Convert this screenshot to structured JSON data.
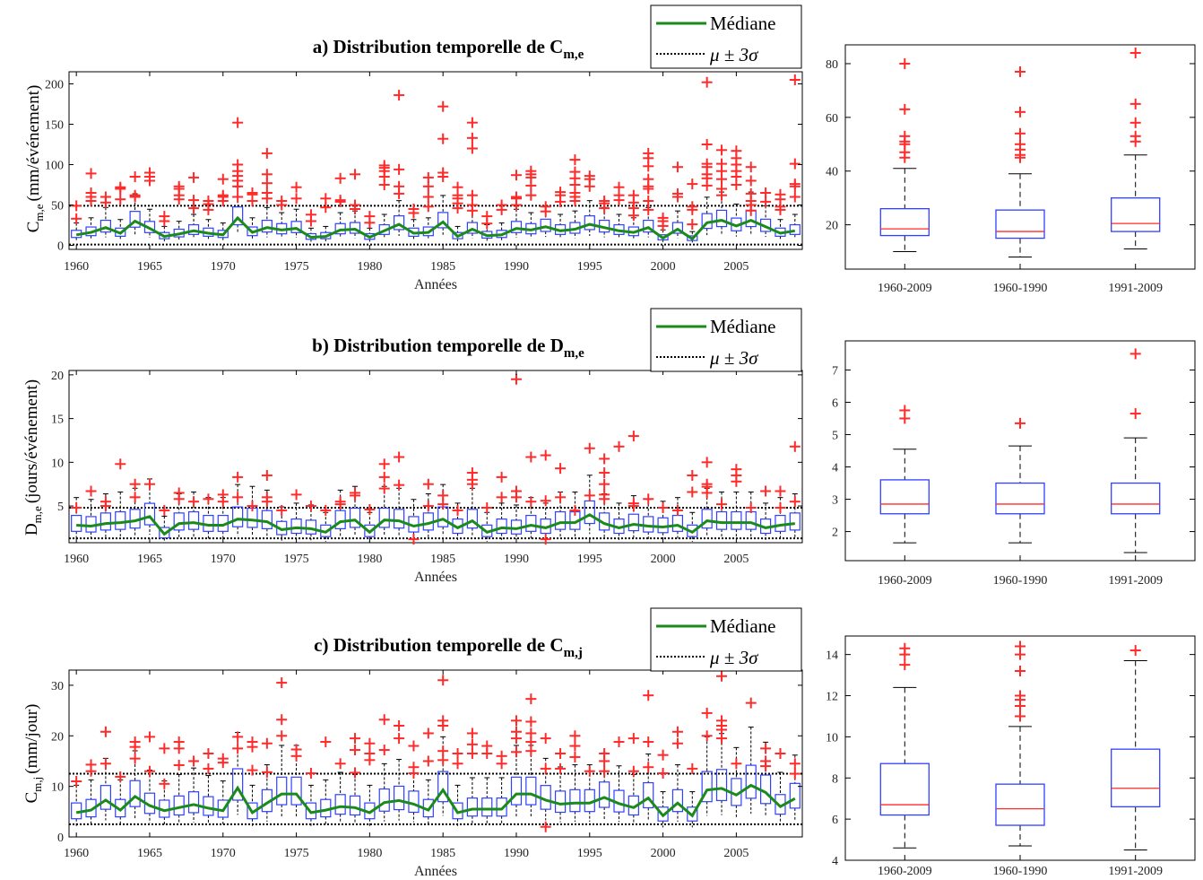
{
  "chart_data": [
    {
      "type": "boxplot",
      "title": "a) Distribution temporelle de C",
      "title_sub": "m,e",
      "ylabel": "C",
      "ylabel_sub": "m,e",
      "ylabel_unit": "(mm/événement)",
      "xlabel": "Années",
      "xlim": [
        1959.5,
        2009.5
      ],
      "ylim": [
        -5,
        215
      ],
      "x_ticks": [
        1960,
        1965,
        1970,
        1975,
        1980,
        1985,
        1990,
        1995,
        2000,
        2005
      ],
      "y_ticks": [
        0,
        50,
        100,
        150,
        200
      ],
      "mu_3sigma_band": [
        1,
        49
      ],
      "legend": {
        "median": "Médiane",
        "band": "μ ± 3σ"
      },
      "years": [
        1960,
        1961,
        1962,
        1963,
        1964,
        1965,
        1966,
        1967,
        1968,
        1969,
        1970,
        1971,
        1972,
        1973,
        1974,
        1975,
        1976,
        1977,
        1978,
        1979,
        1980,
        1981,
        1982,
        1983,
        1984,
        1985,
        1986,
        1987,
        1988,
        1989,
        1990,
        1991,
        1992,
        1993,
        1994,
        1995,
        1996,
        1997,
        1998,
        1999,
        2000,
        2001,
        2002,
        2003,
        2004,
        2005,
        2006,
        2007,
        2008,
        2009
      ],
      "medians": [
        13,
        16,
        22,
        15,
        30,
        21,
        11,
        14,
        18,
        15,
        13,
        34,
        16,
        22,
        19,
        21,
        10,
        11,
        19,
        20,
        10,
        18,
        26,
        15,
        16,
        29,
        11,
        20,
        12,
        13,
        21,
        19,
        23,
        18,
        20,
        26,
        22,
        18,
        16,
        22,
        9,
        20,
        8,
        28,
        31,
        24,
        31,
        23,
        15,
        18
      ],
      "outliers": {
        "1960": [
          33,
          49
        ],
        "1961": [
          55,
          60,
          65,
          89
        ],
        "1962": [
          53,
          60
        ],
        "1963": [
          57,
          70,
          72
        ],
        "1964": [
          60,
          62,
          85
        ],
        "1965": [
          80,
          85,
          90
        ],
        "1966": [
          30,
          36
        ],
        "1967": [
          57,
          62,
          70,
          73
        ],
        "1968": [
          46,
          56,
          84
        ],
        "1969": [
          44,
          51,
          55
        ],
        "1970": [
          55,
          60,
          62,
          82
        ],
        "1971": [
          60,
          73,
          80,
          86,
          92,
          100,
          152
        ],
        "1972": [
          55,
          63,
          65
        ],
        "1973": [
          58,
          65,
          77,
          88,
          114
        ],
        "1974": [
          50,
          55
        ],
        "1975": [
          58,
          72
        ],
        "1976": [
          30,
          38
        ],
        "1977": [
          47,
          58
        ],
        "1978": [
          54,
          56,
          83
        ],
        "1979": [
          45,
          50,
          88
        ],
        "1980": [
          28,
          36
        ],
        "1981": [
          75,
          85,
          92,
          96,
          99
        ],
        "1982": [
          64,
          73,
          94,
          186
        ],
        "1983": [
          40,
          45
        ],
        "1984": [
          48,
          60,
          73,
          84
        ],
        "1985": [
          85,
          90,
          132,
          172
        ],
        "1986": [
          46,
          52,
          58,
          62,
          72
        ],
        "1987": [
          43,
          50,
          62,
          120,
          133,
          152
        ],
        "1988": [
          27,
          36
        ],
        "1989": [
          44,
          50
        ],
        "1990": [
          50,
          58,
          60,
          87
        ],
        "1991": [
          62,
          74,
          84,
          88,
          92
        ],
        "1992": [
          42,
          48
        ],
        "1993": [
          54,
          62,
          66
        ],
        "1994": [
          55,
          60,
          65,
          75,
          83,
          91,
          106
        ],
        "1995": [
          73,
          82,
          86
        ],
        "1996": [
          46,
          52,
          55
        ],
        "1997": [
          56,
          62,
          72
        ],
        "1998": [
          37,
          46,
          53,
          62
        ],
        "1999": [
          44,
          55,
          70,
          73,
          82,
          98,
          108,
          114
        ],
        "2000": [
          24,
          30,
          34
        ],
        "2001": [
          60,
          64,
          97
        ],
        "2002": [
          26,
          44,
          48,
          76
        ],
        "2003": [
          74,
          83,
          88,
          97,
          101,
          125,
          202
        ],
        "2004": [
          62,
          70,
          82,
          92,
          101,
          118
        ],
        "2005": [
          75,
          85,
          92,
          100,
          108,
          117
        ],
        "2006": [
          43,
          50,
          55,
          64,
          80,
          97
        ],
        "2007": [
          54,
          65
        ],
        "2008": [
          44,
          48,
          57,
          63
        ],
        "2009": [
          60,
          73,
          76,
          101,
          205
        ]
      }
    },
    {
      "type": "boxplot",
      "title": "b) Distribution temporelle de D",
      "title_sub": "m,e",
      "ylabel": "D",
      "ylabel_sub": "m,e",
      "ylabel_unit": "(jours/événement)",
      "xlabel": "Années",
      "xlim": [
        1959.5,
        2009.5
      ],
      "ylim": [
        0.8,
        20.5
      ],
      "x_ticks": [
        1960,
        1965,
        1970,
        1975,
        1980,
        1985,
        1990,
        1995,
        2000,
        2005
      ],
      "y_ticks": [
        5,
        10,
        15,
        20
      ],
      "mu_3sigma_band": [
        1.3,
        4.8
      ],
      "legend": {
        "median": "Médiane",
        "band": "μ ± 3σ"
      },
      "years": [
        1960,
        1961,
        1962,
        1963,
        1964,
        1965,
        1966,
        1967,
        1968,
        1969,
        1970,
        1971,
        1972,
        1973,
        1974,
        1975,
        1976,
        1977,
        1978,
        1979,
        1980,
        1981,
        1982,
        1983,
        1984,
        1985,
        1986,
        1987,
        1988,
        1989,
        1990,
        1991,
        1992,
        1993,
        1994,
        1995,
        1996,
        1997,
        1998,
        1999,
        2000,
        2001,
        2002,
        2003,
        2004,
        2005,
        2006,
        2007,
        2008,
        2009
      ],
      "medians": [
        2.8,
        2.7,
        3.0,
        3.1,
        3.3,
        3.8,
        1.8,
        3.0,
        3.1,
        2.8,
        2.8,
        3.5,
        3.4,
        3.2,
        2.3,
        2.5,
        2.4,
        2.0,
        3.2,
        3.4,
        2.0,
        3.4,
        3.3,
        2.7,
        3.0,
        3.5,
        2.5,
        3.3,
        2.0,
        2.5,
        2.4,
        2.8,
        2.5,
        3.1,
        3.1,
        4.0,
        3.0,
        2.5,
        2.9,
        2.7,
        2.6,
        2.8,
        2.0,
        3.3,
        3.1,
        3.1,
        3.1,
        2.5,
        2.8,
        3.0
      ],
      "outliers": {
        "1960": [
          4.8
        ],
        "1961": [
          6.7
        ],
        "1962": [
          5.0,
          5.5
        ],
        "1963": [
          9.8
        ],
        "1964": [
          6.0,
          7.5
        ],
        "1965": [
          7.5
        ],
        "1966": [
          4.5
        ],
        "1967": [
          5.8,
          6.5
        ],
        "1968": [
          5.5
        ],
        "1969": [
          5.8
        ],
        "1970": [
          5.5,
          6.3
        ],
        "1971": [
          6.0,
          8.3
        ],
        "1972": [
          5.0
        ],
        "1973": [
          5.5,
          6.0,
          8.5
        ],
        "1974": [
          4.5
        ],
        "1975": [
          6.3
        ],
        "1976": [
          5.0
        ],
        "1977": [
          4.5
        ],
        "1978": [
          5.2,
          5.5
        ],
        "1979": [
          6.2,
          6.5
        ],
        "1980": [
          4.6
        ],
        "1981": [
          7.0,
          8.3,
          9.8
        ],
        "1982": [
          7.4,
          10.6
        ],
        "1983": [
          1.2
        ],
        "1984": [
          5.0,
          7.5
        ],
        "1985": [
          5.2,
          6.2
        ],
        "1986": [
          4.5
        ],
        "1987": [
          7.5,
          8.0,
          8.8
        ],
        "1988": [
          4.8
        ],
        "1989": [
          6.0,
          8.3
        ],
        "1990": [
          6.0,
          6.7,
          19.5
        ],
        "1991": [
          5.5,
          10.6
        ],
        "1992": [
          5.6,
          10.8,
          1.2
        ],
        "1993": [
          6.0,
          9.3
        ],
        "1994": [
          4.5
        ],
        "1995": [
          6.2,
          11.6
        ],
        "1996": [
          5.8,
          6.3,
          7.5,
          8.8,
          10.4
        ],
        "1997": [
          11.8
        ],
        "1998": [
          5.0,
          5.3,
          13.0
        ],
        "1999": [
          5.8
        ],
        "2000": [
          4.8
        ],
        "2001": [
          4.5
        ],
        "2002": [
          6.6,
          8.5
        ],
        "2003": [
          6.5,
          7.2,
          7.5,
          10.0
        ],
        "2004": [
          5.2
        ],
        "2005": [
          7.8,
          8.5,
          9.2
        ],
        "2006": [
          4.8
        ],
        "2007": [
          6.7
        ],
        "2008": [
          4.8,
          6.7
        ],
        "2009": [
          5.5,
          11.8
        ]
      }
    },
    {
      "type": "boxplot",
      "title": "c) Distribution temporelle de C",
      "title_sub": "m,j",
      "ylabel": "C",
      "ylabel_sub": "m,j",
      "ylabel_unit": "(mm/jour)",
      "xlabel": "Années",
      "xlim": [
        1959.5,
        2009.5
      ],
      "ylim": [
        0,
        33
      ],
      "x_ticks": [
        1960,
        1965,
        1970,
        1975,
        1980,
        1985,
        1990,
        1995,
        2000,
        2005
      ],
      "y_ticks": [
        0,
        10,
        20,
        30
      ],
      "mu_3sigma_band": [
        2.5,
        12.5
      ],
      "legend": {
        "median": "Médiane",
        "band": "μ ± 3σ"
      },
      "years": [
        1960,
        1961,
        1962,
        1963,
        1964,
        1965,
        1966,
        1967,
        1968,
        1969,
        1970,
        1971,
        1972,
        1973,
        1974,
        1975,
        1976,
        1977,
        1978,
        1979,
        1980,
        1981,
        1982,
        1983,
        1984,
        1985,
        1986,
        1987,
        1988,
        1989,
        1990,
        1991,
        1992,
        1993,
        1994,
        1995,
        1996,
        1997,
        1998,
        1999,
        2000,
        2001,
        2002,
        2003,
        2004,
        2005,
        2006,
        2007,
        2008,
        2009
      ],
      "medians": [
        4.8,
        5.3,
        7.3,
        5.3,
        8.0,
        6.2,
        5.2,
        5.8,
        6.4,
        5.7,
        5.2,
        9.7,
        4.8,
        6.7,
        8.5,
        8.5,
        4.8,
        5.3,
        6.0,
        5.8,
        4.8,
        6.8,
        7.2,
        6.5,
        5.3,
        9.3,
        4.8,
        5.5,
        5.5,
        5.5,
        8.5,
        8.5,
        7.3,
        6.5,
        6.7,
        6.7,
        7.8,
        6.6,
        5.8,
        7.7,
        4.2,
        6.7,
        4.2,
        9.3,
        9.6,
        8.3,
        10.2,
        8.8,
        6.0,
        7.6
      ],
      "outliers": {
        "1960": [
          11.0
        ],
        "1961": [
          13.0,
          14.3
        ],
        "1962": [
          14.5,
          20.8
        ],
        "1963": [
          11.9
        ],
        "1964": [
          15.5,
          17.8,
          18.8
        ],
        "1965": [
          13.0,
          19.8
        ],
        "1966": [
          10.5,
          17.5
        ],
        "1967": [
          14.2,
          17.5,
          18.8
        ],
        "1968": [
          15.0
        ],
        "1969": [
          13.5,
          16.5
        ],
        "1970": [
          14.7,
          15.5
        ],
        "1971": [
          17.5,
          19.8
        ],
        "1972": [
          13.2,
          17.8,
          18.8
        ],
        "1973": [
          12.8,
          18.5
        ],
        "1974": [
          20.0,
          23.2,
          30.5
        ],
        "1975": [
          16.0,
          17.3
        ],
        "1976": [
          12.6
        ],
        "1977": [
          18.8
        ],
        "1978": [
          14.5
        ],
        "1979": [
          12.7,
          17.2,
          19.5
        ],
        "1980": [
          15.2,
          16.5,
          18.5
        ],
        "1981": [
          17.2,
          23.2
        ],
        "1982": [
          19.5,
          22.0
        ],
        "1983": [
          12.6,
          13.8,
          18.0
        ],
        "1984": [
          15.0,
          20.5
        ],
        "1985": [
          15.2,
          17.0,
          22.0,
          23.0,
          31.0
        ],
        "1986": [
          14.5,
          16.5
        ],
        "1987": [
          16.5,
          18.3,
          20.5
        ],
        "1988": [
          16.5,
          18.0
        ],
        "1989": [
          14.5,
          16.0
        ],
        "1990": [
          16.8,
          19.5,
          20.8,
          23.0
        ],
        "1991": [
          17.0,
          18.8,
          20.5,
          22.8,
          27.3
        ],
        "1992": [
          19.5,
          13.5,
          2.0
        ],
        "1993": [
          13.5,
          16.5
        ],
        "1994": [
          15.8,
          18.0,
          20.0
        ],
        "1995": [
          13.0
        ],
        "1996": [
          13.0,
          15.0,
          16.5
        ],
        "1997": [
          18.8
        ],
        "1998": [
          13.0,
          19.5
        ],
        "1999": [
          13.8,
          18.8,
          28.0
        ],
        "2000": [
          12.6,
          16.2
        ],
        "2001": [
          18.5,
          20.8
        ],
        "2002": [
          13.5
        ],
        "2003": [
          20.0,
          24.5
        ],
        "2004": [
          19.5,
          21.2,
          22.0,
          23.0,
          31.8
        ],
        "2005": [
          14.5
        ],
        "2006": [
          26.5
        ],
        "2007": [
          14.0,
          15.0,
          17.5
        ],
        "2008": [
          16.5
        ],
        "2009": [
          12.5,
          14.5
        ]
      }
    },
    {
      "type": "boxplot",
      "categories": [
        "1960-2009",
        "1960-1990",
        "1991-2009"
      ],
      "ylim": [
        3.5,
        87
      ],
      "y_ticks": [
        20,
        40,
        60,
        80
      ],
      "boxes": [
        {
          "min": 10,
          "q1": 16,
          "median": 18.5,
          "q3": 26,
          "max": 41,
          "outliers": [
            45,
            47,
            50,
            51,
            53,
            63,
            80
          ]
        },
        {
          "min": 8,
          "q1": 15,
          "median": 17.5,
          "q3": 25.5,
          "max": 39,
          "outliers": [
            45,
            46,
            48,
            50,
            54,
            62,
            77
          ]
        },
        {
          "min": 11,
          "q1": 17.5,
          "median": 20.5,
          "q3": 30,
          "max": 46,
          "outliers": [
            51,
            53,
            58,
            65,
            84
          ]
        }
      ]
    },
    {
      "type": "boxplot",
      "categories": [
        "1960-2009",
        "1960-1990",
        "1991-2009"
      ],
      "ylim": [
        1.1,
        7.9
      ],
      "y_ticks": [
        2,
        3,
        4,
        5,
        6,
        7
      ],
      "boxes": [
        {
          "min": 1.65,
          "q1": 2.55,
          "median": 2.85,
          "q3": 3.6,
          "max": 4.55,
          "outliers": [
            5.5,
            5.75
          ]
        },
        {
          "min": 1.65,
          "q1": 2.55,
          "median": 2.85,
          "q3": 3.5,
          "max": 4.65,
          "outliers": [
            5.35
          ]
        },
        {
          "min": 1.35,
          "q1": 2.55,
          "median": 2.85,
          "q3": 3.5,
          "max": 4.9,
          "outliers": [
            5.65,
            7.5
          ]
        }
      ]
    },
    {
      "type": "boxplot",
      "categories": [
        "1960-2009",
        "1960-1990",
        "1991-2009"
      ],
      "ylim": [
        4,
        14.9
      ],
      "y_ticks": [
        4,
        6,
        8,
        10,
        12,
        14
      ],
      "boxes": [
        {
          "min": 4.6,
          "q1": 6.2,
          "median": 6.7,
          "q3": 8.7,
          "max": 12.4,
          "outliers": [
            13.5,
            14.0,
            14.3
          ]
        },
        {
          "min": 4.7,
          "q1": 5.7,
          "median": 6.5,
          "q3": 7.7,
          "max": 10.5,
          "outliers": [
            11.0,
            11.5,
            11.8,
            12.0,
            13.2,
            14.0,
            14.4
          ]
        },
        {
          "min": 4.5,
          "q1": 6.6,
          "median": 7.5,
          "q3": 9.4,
          "max": 13.7,
          "outliers": [
            14.2
          ]
        }
      ]
    }
  ]
}
